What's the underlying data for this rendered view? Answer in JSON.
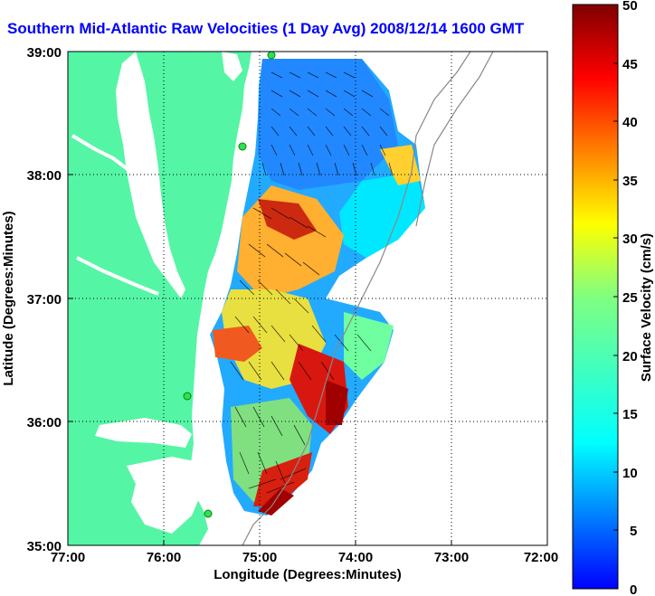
{
  "title": "Southern Mid-Atlantic Raw Velocities (1 Day Avg) 2008/12/14 1600 GMT",
  "xlabel": "Longitude (Degrees:Minutes)",
  "ylabel": "Latitude (Degrees:Minutes)",
  "colorbar_label": "Surface Velocity (cm/s)",
  "x_ticks": [
    "77:00",
    "76:00",
    "75:00",
    "74:00",
    "73:00",
    "72:00"
  ],
  "y_ticks": [
    "39:00",
    "38:00",
    "37:00",
    "36:00",
    "35:00"
  ],
  "cb_ticks": [
    "50",
    "45",
    "40",
    "35",
    "30",
    "25",
    "20",
    "15",
    "10",
    "5",
    "0"
  ],
  "colors": {
    "land": "#55f5a6",
    "title": "#0000ff",
    "grid": "#000000"
  },
  "map": {
    "lon_range": [
      -77,
      -72
    ],
    "lat_range": [
      35,
      39
    ],
    "velocity_range_cm_s": [
      0,
      50
    ],
    "grid": "dotted"
  }
}
